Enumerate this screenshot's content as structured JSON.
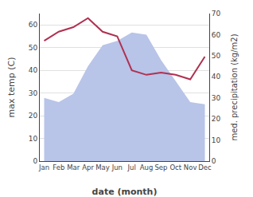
{
  "chart_data": {
    "type": "line",
    "categories": [
      "Jan",
      "Feb",
      "Mar",
      "Apr",
      "May",
      "Jun",
      "Jul",
      "Aug",
      "Sep",
      "Oct",
      "Nov",
      "Dec"
    ],
    "series": [
      {
        "type": "area",
        "axis": "y2",
        "color": "#b8c4e8",
        "values": [
          30,
          28,
          32,
          45,
          55,
          57,
          61,
          60,
          48,
          38,
          28,
          27
        ]
      },
      {
        "type": "line",
        "color": "#b03050",
        "values": [
          53,
          57,
          59,
          63,
          57,
          55,
          40,
          38,
          39,
          38,
          36,
          46
        ]
      }
    ],
    "xlabel": "date (month)",
    "ylabel": "max temp (C)",
    "y2label": "med. precipitation (kg/m2)",
    "ylim": [
      0,
      65
    ],
    "yticks": [
      0,
      10,
      20,
      30,
      40,
      50,
      60
    ],
    "y2lim": [
      0,
      70
    ],
    "y2ticks": [
      0,
      10,
      20,
      30,
      40,
      50,
      60,
      70
    ],
    "grid": true
  }
}
